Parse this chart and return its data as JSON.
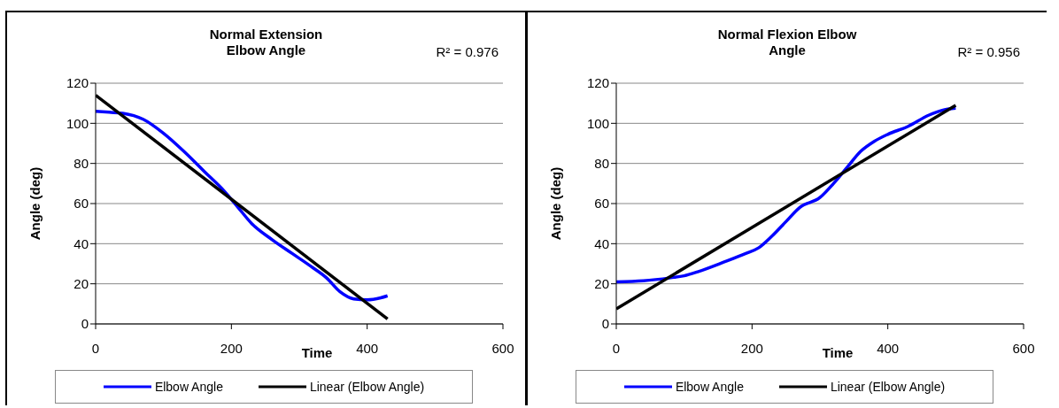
{
  "chart_data": [
    {
      "type": "line",
      "title": "Normal Extension Elbow Angle",
      "xlabel": "Time",
      "ylabel": "Angle (deg)",
      "annotations": [
        "R² = 0.976"
      ],
      "xlim": [
        0,
        600
      ],
      "xticks": [
        0,
        200,
        400,
        600
      ],
      "ylim": [
        0,
        120
      ],
      "yticks": [
        0,
        20,
        40,
        60,
        80,
        100,
        120
      ],
      "grid": "y",
      "legend": "bottom",
      "marker": "none",
      "line_style": "solid",
      "series": [
        {
          "name": "Elbow Angle",
          "color": "#0000ff",
          "x": [
            0,
            20,
            40,
            70,
            100,
            130,
            160,
            190,
            210,
            230,
            260,
            290,
            320,
            340,
            360,
            380,
            400,
            420,
            430
          ],
          "values": [
            106,
            105.5,
            105,
            102,
            95,
            86,
            76,
            66,
            58,
            50,
            42,
            35,
            28,
            23,
            16,
            12.5,
            12,
            13,
            14
          ]
        },
        {
          "name": "Linear (Elbow Angle)",
          "color": "#000000",
          "x": [
            0,
            430
          ],
          "values": [
            114,
            2.5
          ]
        }
      ]
    },
    {
      "type": "line",
      "title": "Normal Flexion Elbow Angle",
      "xlabel": "Time",
      "ylabel": "Angle (deg)",
      "annotations": [
        "R² = 0.956"
      ],
      "xlim": [
        0,
        600
      ],
      "xticks": [
        0,
        200,
        400,
        600
      ],
      "ylim": [
        0,
        120
      ],
      "yticks": [
        0,
        20,
        40,
        60,
        80,
        100,
        120
      ],
      "grid": "y",
      "legend": "bottom",
      "marker": "none",
      "line_style": "solid",
      "series": [
        {
          "name": "Elbow Angle",
          "color": "#0000ff",
          "x": [
            0,
            40,
            80,
            100,
            120,
            160,
            190,
            210,
            230,
            250,
            270,
            300,
            320,
            340,
            360,
            380,
            400,
            430,
            460,
            480,
            500
          ],
          "values": [
            21,
            21.5,
            23,
            24,
            26,
            31,
            35,
            38,
            44,
            51,
            58,
            63,
            70,
            78,
            86,
            91,
            94.5,
            98.5,
            104,
            106.5,
            107.5
          ]
        },
        {
          "name": "Linear (Elbow Angle)",
          "color": "#000000",
          "x": [
            0,
            500
          ],
          "values": [
            7.5,
            109
          ]
        }
      ]
    }
  ]
}
